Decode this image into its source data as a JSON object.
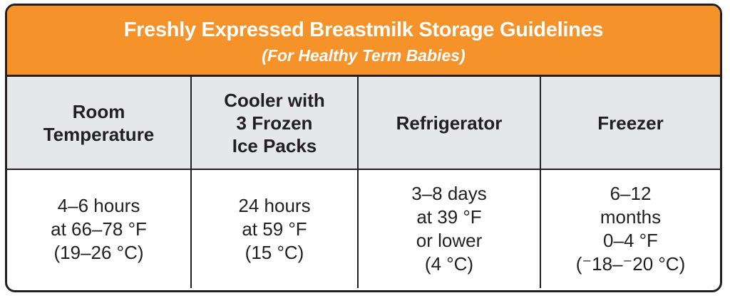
{
  "header": {
    "title": "Freshly Expressed Breastmilk Storage Guidelines",
    "subtitle": "(For Healthy Term Babies)"
  },
  "table": {
    "columns": [
      [
        "Room",
        "Temperature"
      ],
      [
        "Cooler with",
        "3 Frozen",
        "Ice Packs"
      ],
      [
        "Refrigerator"
      ],
      [
        "Freezer"
      ]
    ],
    "rows": [
      [
        [
          "4–6 hours",
          "at 66–78 °F",
          "(19–26 °C)"
        ],
        [
          "24 hours",
          "at 59 °F",
          "(15 °C)"
        ],
        [
          "3–8 days",
          "at 39 °F",
          "or lower",
          "(4 °C)"
        ],
        [
          "6–12",
          "months",
          "0–4 °F",
          "(⁻18–⁻20 °C)"
        ]
      ]
    ]
  }
}
